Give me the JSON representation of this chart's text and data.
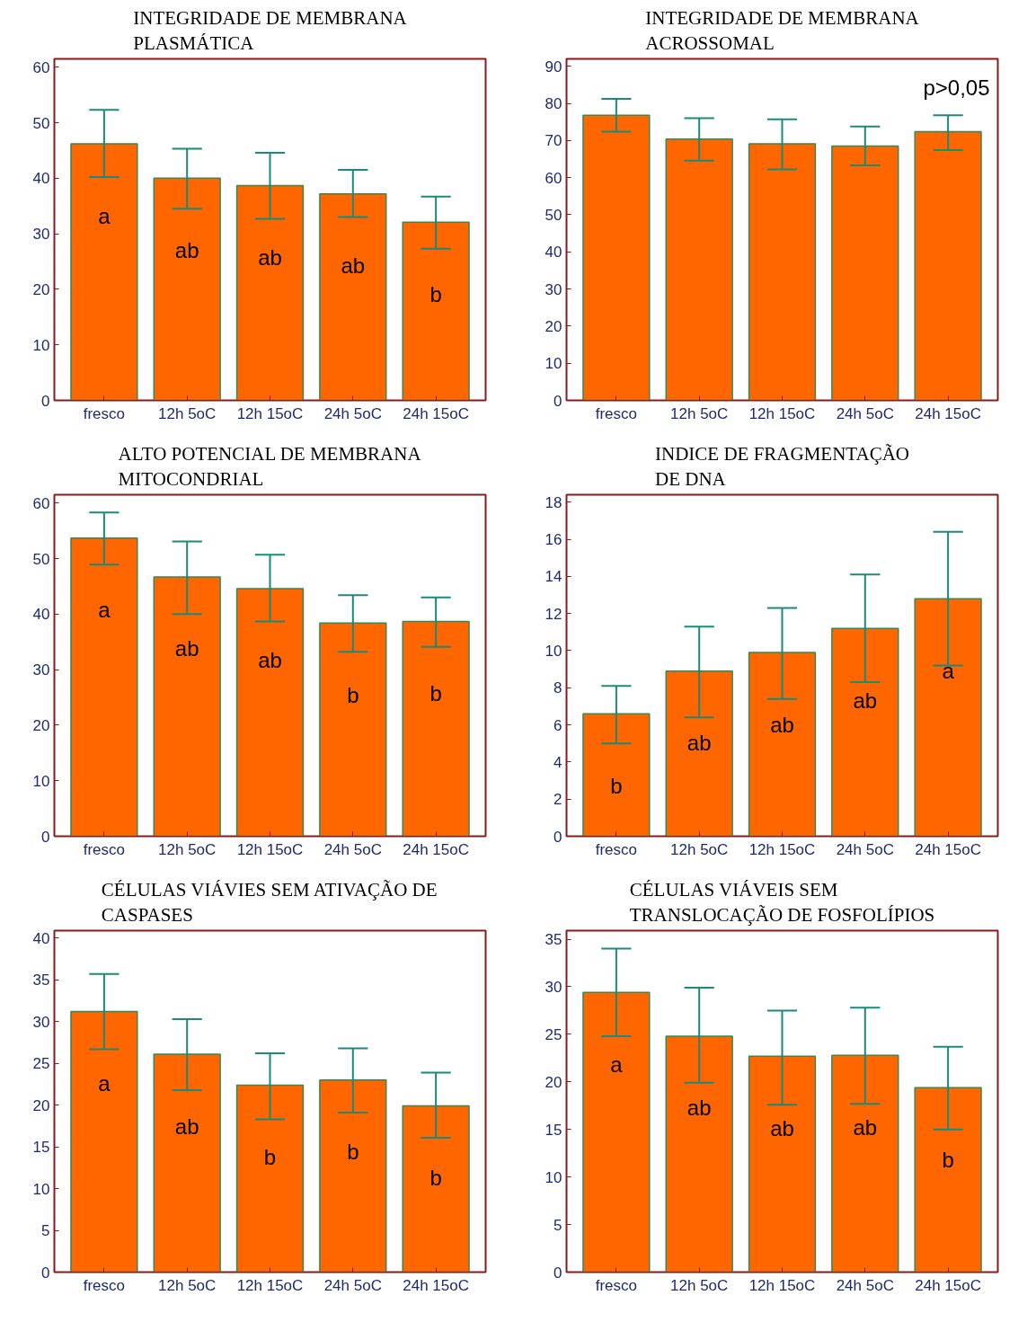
{
  "chart_data": [
    {
      "type": "bar",
      "title": "INTEGRIDADE DE MEMBRANA\nPLASMÁTICA",
      "categories": [
        "fresco",
        "12h 5oC",
        "12h 15oC",
        "24h 5oC",
        "24h 15oC"
      ],
      "values": [
        46.2,
        40.0,
        38.7,
        37.2,
        32.1
      ],
      "errors": [
        [
          40.2,
          52.3
        ],
        [
          34.5,
          45.3
        ],
        [
          32.7,
          44.6
        ],
        [
          33.0,
          41.5
        ],
        [
          27.3,
          36.7
        ]
      ],
      "color": "#ff6600",
      "ylim": [
        0,
        61.5
      ],
      "yticks": [
        0,
        10,
        20,
        30,
        40,
        50,
        60
      ],
      "grid": false,
      "value_labels": [
        "a",
        "ab",
        "ab",
        "ab",
        "b"
      ]
    },
    {
      "type": "bar",
      "title": "INTEGRIDADE DE MEMBRANA\nACROSSOMAL",
      "categories": [
        "fresco",
        "12h 5oC",
        "12h 15oC",
        "24h 5oC",
        "24h 15oC"
      ],
      "values": [
        76.8,
        70.4,
        69.1,
        68.5,
        72.4
      ],
      "errors": [
        [
          72.4,
          81.2
        ],
        [
          64.6,
          76.0
        ],
        [
          62.2,
          75.7
        ],
        [
          63.3,
          73.8
        ],
        [
          67.4,
          76.8
        ]
      ],
      "color": "#ff6600",
      "ylim": [
        0,
        92
      ],
      "yticks": [
        0,
        10,
        20,
        30,
        40,
        50,
        60,
        70,
        80,
        90
      ],
      "grid": false,
      "annotations": [
        "p>0,05"
      ]
    },
    {
      "type": "bar",
      "title": "ALTO POTENCIAL DE MEMBRANA\nMITOCONDRIAL",
      "categories": [
        "fresco",
        "12h 5oC",
        "12h 15oC",
        "24h 5oC",
        "24h 15oC"
      ],
      "values": [
        53.7,
        46.7,
        44.6,
        38.4,
        38.7
      ],
      "errors": [
        [
          48.9,
          58.3
        ],
        [
          40.0,
          53.1
        ],
        [
          38.7,
          50.7
        ],
        [
          33.2,
          43.4
        ],
        [
          34.1,
          43.0
        ]
      ],
      "color": "#ff6600",
      "ylim": [
        0,
        61.5
      ],
      "yticks": [
        0,
        10,
        20,
        30,
        40,
        50,
        60
      ],
      "grid": false,
      "value_labels": [
        "a",
        "ab",
        "ab",
        "b",
        "b"
      ]
    },
    {
      "type": "bar",
      "title": "INDICE DE FRAGMENTAÇÃO\nDE DNA",
      "categories": [
        "fresco",
        "12h 5oC",
        "12h 15oC",
        "24h 5oC",
        "24h 15oC"
      ],
      "values": [
        6.6,
        8.9,
        9.9,
        11.2,
        12.8
      ],
      "errors": [
        [
          5.0,
          8.1
        ],
        [
          6.4,
          11.3
        ],
        [
          7.4,
          12.3
        ],
        [
          8.3,
          14.1
        ],
        [
          9.2,
          16.4
        ]
      ],
      "color": "#ff6600",
      "ylim": [
        0,
        18.4
      ],
      "yticks": [
        0,
        2,
        4,
        6,
        8,
        10,
        12,
        14,
        16,
        18
      ],
      "grid": false,
      "value_labels": [
        "b",
        "ab",
        "ab",
        "ab",
        "a"
      ]
    },
    {
      "type": "bar",
      "title": "CÉLULAS VIÁVIES SEM ATIVAÇÃO DE\nCASPASES",
      "categories": [
        "fresco",
        "12h 5oC",
        "12h 15oC",
        "24h 5oC",
        "24h 15oC"
      ],
      "values": [
        31.2,
        26.1,
        22.4,
        23.0,
        19.9
      ],
      "errors": [
        [
          26.7,
          35.7
        ],
        [
          21.8,
          30.3
        ],
        [
          18.3,
          26.2
        ],
        [
          19.1,
          26.8
        ],
        [
          16.1,
          23.9
        ]
      ],
      "color": "#ff6600",
      "ylim": [
        0,
        40.9
      ],
      "yticks": [
        0,
        5,
        10,
        15,
        20,
        25,
        30,
        35,
        40
      ],
      "grid": false,
      "value_labels": [
        "a",
        "ab",
        "b",
        "b",
        "b"
      ]
    },
    {
      "type": "bar",
      "title": "CÉLULAS VIÁVEIS SEM\nTRANSLOCAÇÃO DE FOSFOLÍPIOS",
      "categories": [
        "fresco",
        "12h 5oC",
        "12h 15oC",
        "24h 5oC",
        "24h 15oC"
      ],
      "values": [
        29.4,
        24.8,
        22.7,
        22.8,
        19.4
      ],
      "errors": [
        [
          24.8,
          34.0
        ],
        [
          19.9,
          29.9
        ],
        [
          17.6,
          27.5
        ],
        [
          17.7,
          27.8
        ],
        [
          15.0,
          23.7
        ]
      ],
      "color": "#ff6600",
      "ylim": [
        0,
        35.9
      ],
      "yticks": [
        0,
        5,
        10,
        15,
        20,
        25,
        30,
        35
      ],
      "grid": false,
      "value_labels": [
        "a",
        "ab",
        "ab",
        "ab",
        "b"
      ]
    }
  ]
}
